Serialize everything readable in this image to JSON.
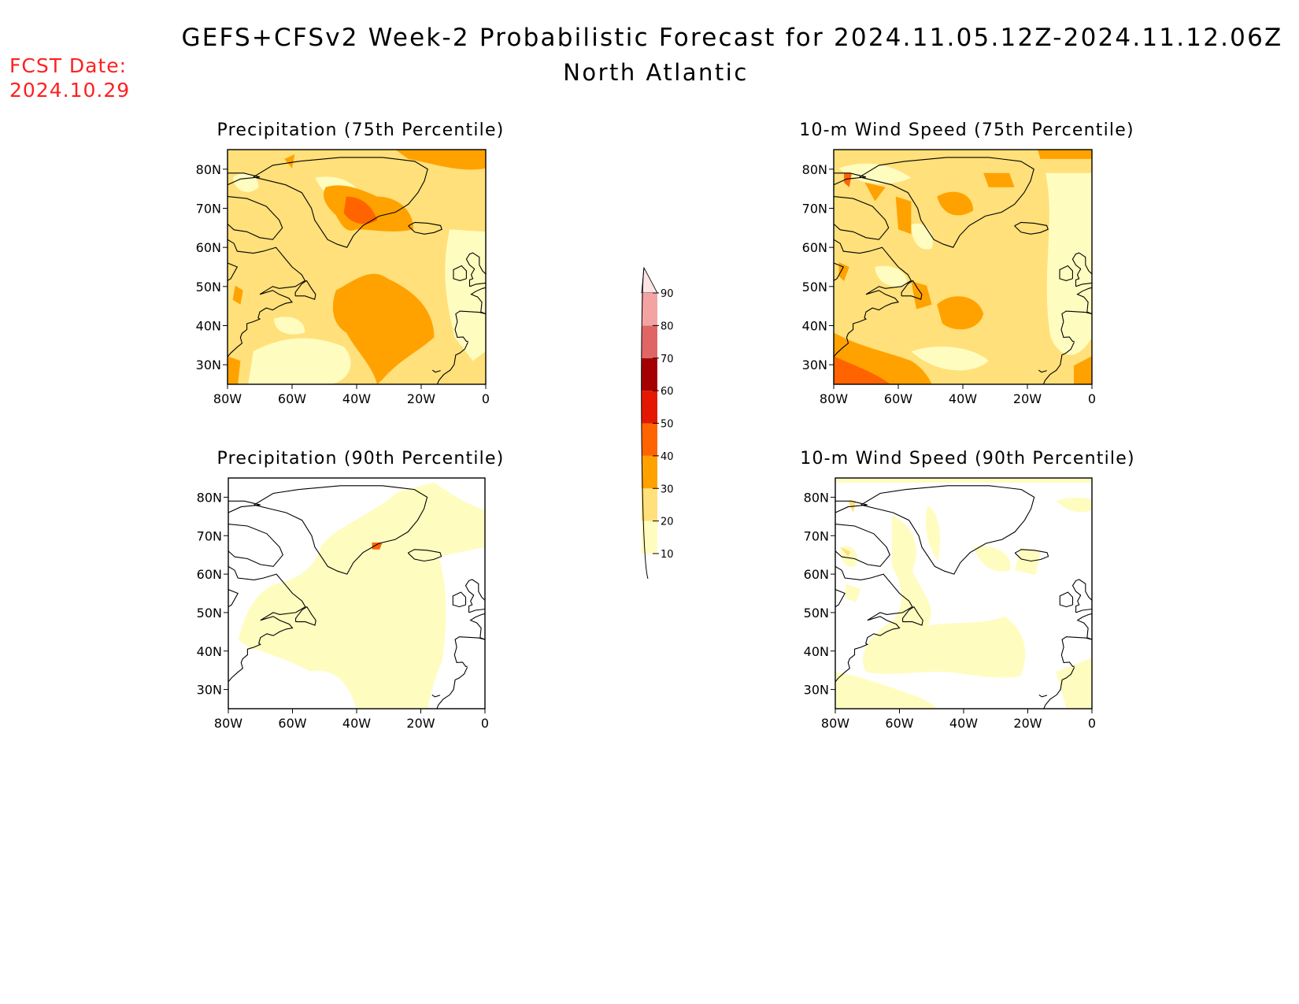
{
  "header": {
    "title": "GEFS+CFSv2 Week-2 Probabilistic Forecast for 2024.11.05.12Z-2024.11.12.06Z",
    "subtitle": "North Atlantic",
    "fcst_label": "FCST Date:",
    "fcst_date": "2024.10.29"
  },
  "map_extent": {
    "lon": [
      -80,
      0
    ],
    "lat": [
      25,
      85
    ]
  },
  "axes": {
    "lat_ticks": [
      "80N",
      "70N",
      "60N",
      "50N",
      "40N",
      "30N"
    ],
    "lon_ticks": [
      "80W",
      "60W",
      "40W",
      "20W",
      "0"
    ]
  },
  "panels": [
    {
      "id": "precip-75",
      "title": "Precipitation (75th Percentile)",
      "variable": "precipitation",
      "percentile": "75th"
    },
    {
      "id": "wind-75",
      "title": "10-m Wind Speed (75th Percentile)",
      "variable": "10-m wind speed",
      "percentile": "75th"
    },
    {
      "id": "precip-90",
      "title": "Precipitation (90th Percentile)",
      "variable": "precipitation",
      "percentile": "90th"
    },
    {
      "id": "wind-90",
      "title": "10-m Wind Speed (90th Percentile)",
      "variable": "10-m wind speed",
      "percentile": "90th"
    }
  ],
  "colorbar": {
    "levels": [
      "10",
      "20",
      "30",
      "40",
      "50",
      "60",
      "70",
      "80",
      "90"
    ],
    "colors": [
      "#fffcc0",
      "#ffe07a",
      "#ffa200",
      "#ff6400",
      "#e41800",
      "#a50000",
      "#e06666",
      "#f4a3a3",
      "#ffe4e4"
    ]
  }
}
